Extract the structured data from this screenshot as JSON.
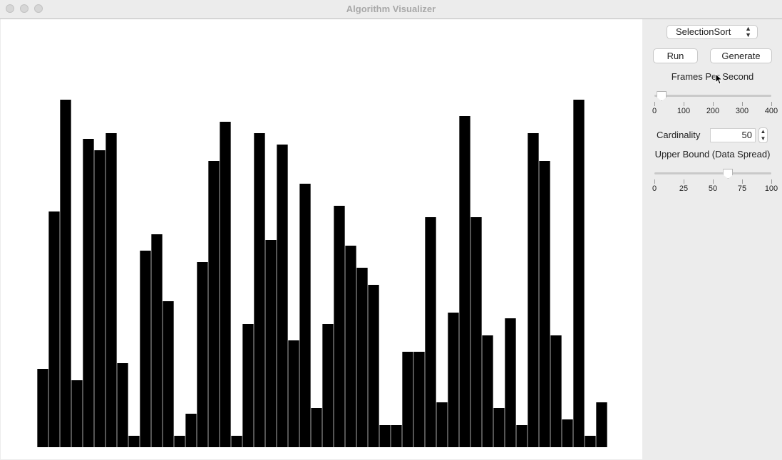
{
  "window": {
    "title": "Algorithm Visualizer"
  },
  "controls": {
    "algorithm": "SelectionSort",
    "run_label": "Run",
    "generate_label": "Generate",
    "fps_label": "Frames Per Second",
    "fps_ticks": [
      "0",
      "100",
      "200",
      "300",
      "400"
    ],
    "fps_value": 25,
    "fps_max": 400,
    "cardinality_label": "Cardinality",
    "cardinality_value": "50",
    "upper_bound_label": "Upper Bound (Data Spread)",
    "upper_bound_ticks": [
      "0",
      "25",
      "50",
      "75",
      "100"
    ],
    "upper_bound_value": 63,
    "upper_bound_max": 100
  },
  "bars": {
    "max": 63,
    "values": [
      14,
      42,
      62,
      12,
      55,
      53,
      56,
      15,
      2,
      35,
      38,
      26,
      2,
      6,
      33,
      51,
      58,
      2,
      22,
      56,
      37,
      54,
      19,
      47,
      7,
      22,
      43,
      36,
      32,
      29,
      4,
      4,
      17,
      17,
      41,
      8,
      24,
      59,
      41,
      20,
      7,
      23,
      4,
      56,
      51,
      20,
      5,
      62,
      2,
      8
    ]
  }
}
